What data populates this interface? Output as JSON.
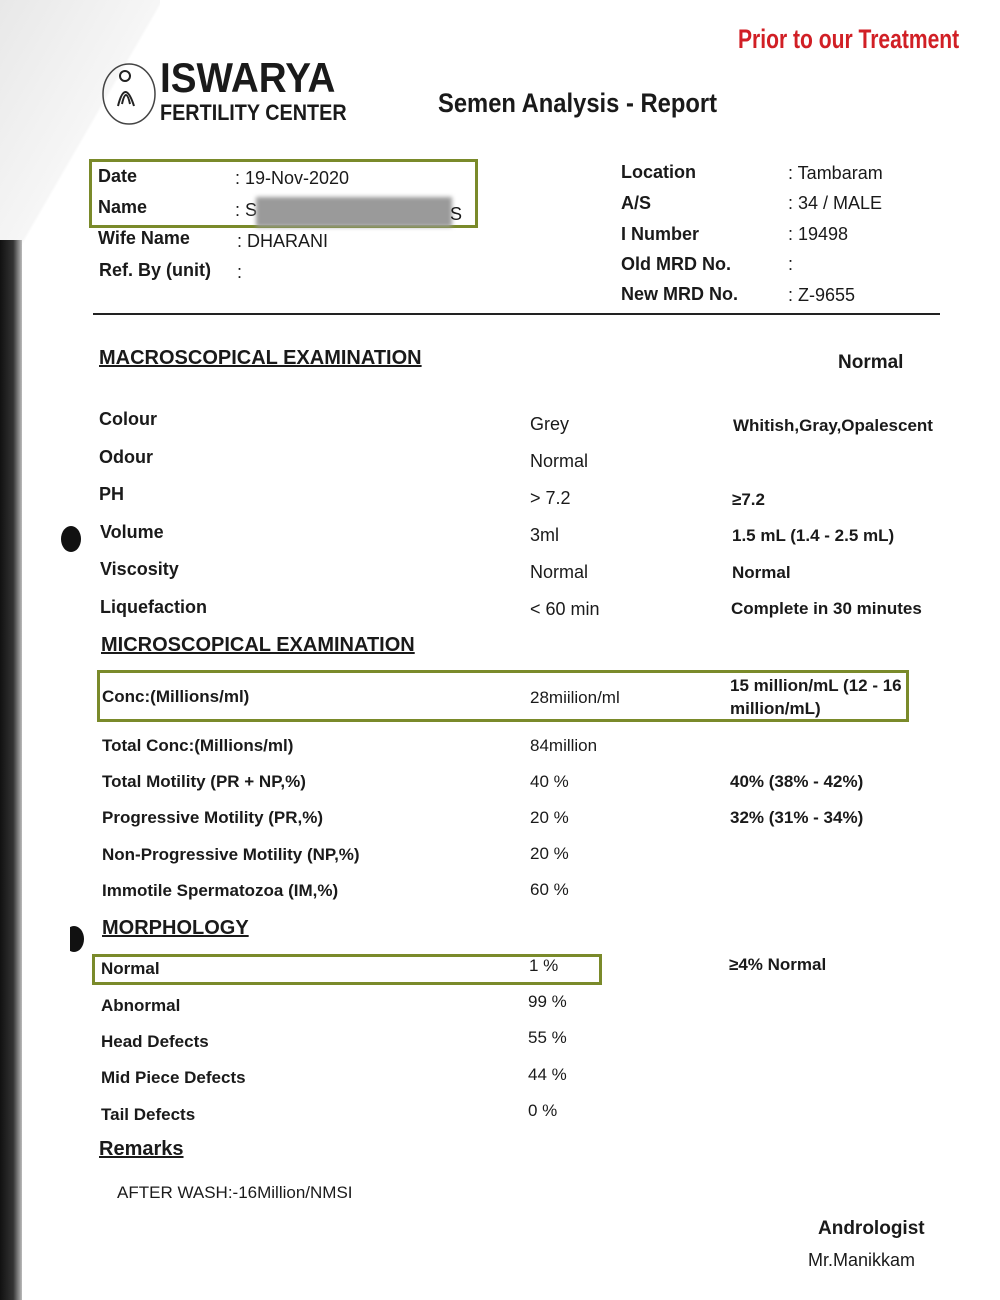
{
  "stamp": "Prior to our Treatment",
  "logo": {
    "name": "ISWARYA",
    "subtitle": "FERTILITY CENTER"
  },
  "report_title": "Semen Analysis - Report",
  "patient_left": [
    {
      "label": "Date",
      "value": ": 19-Nov-2020"
    },
    {
      "label": "Name",
      "value_start": ": S",
      "value_end": "S"
    },
    {
      "label": "Wife Name",
      "value": ": DHARANI"
    },
    {
      "label": "Ref. By (unit)",
      "value": ":"
    }
  ],
  "patient_right": [
    {
      "label": "Location",
      "value": ": Tambaram"
    },
    {
      "label": "A/S",
      "value": ": 34 / MALE"
    },
    {
      "label": "I Number",
      "value": ": 19498"
    },
    {
      "label": "Old MRD No.",
      "value": ":"
    },
    {
      "label": "New MRD No.",
      "value": ": Z-9655"
    }
  ],
  "macro": {
    "heading": "MACROSCOPICAL EXAMINATION",
    "normal_heading": "Normal",
    "rows": [
      {
        "label": "Colour",
        "value": "Grey",
        "normal": "Whitish,Gray,Opalescent"
      },
      {
        "label": "Odour",
        "value": "Normal",
        "normal": ""
      },
      {
        "label": "PH",
        "value": "> 7.2",
        "normal": "≥7.2"
      },
      {
        "label": "Volume",
        "value": "3ml",
        "normal": "1.5 mL (1.4 - 2.5 mL)"
      },
      {
        "label": "Viscosity",
        "value": "Normal",
        "normal": "Normal"
      },
      {
        "label": "Liquefaction",
        "value": "< 60 min",
        "normal": "Complete in 30 minutes"
      }
    ]
  },
  "micro": {
    "heading": "MICROSCOPICAL EXAMINATION",
    "rows": [
      {
        "label": "Conc:(Millions/ml)",
        "value": "28miilion/ml",
        "normal_line1": "15 million/mL (12 - 16",
        "normal_line2": "million/mL)"
      },
      {
        "label": "Total Conc:(Millions/ml)",
        "value": "84million",
        "normal": ""
      },
      {
        "label": "Total Motility (PR + NP,%)",
        "value": "40 %",
        "normal": "40% (38% - 42%)"
      },
      {
        "label": "Progressive Motility (PR,%)",
        "value": "20 %",
        "normal": "32% (31% - 34%)"
      },
      {
        "label": "Non-Progressive Motility (NP,%)",
        "value": "20 %",
        "normal": ""
      },
      {
        "label": "Immotile Spermatozoa (IM,%)",
        "value": "60 %",
        "normal": ""
      }
    ]
  },
  "morph": {
    "heading": "MORPHOLOGY",
    "rows": [
      {
        "label": "Normal",
        "value": "1 %",
        "normal": "≥4% Normal"
      },
      {
        "label": "Abnormal",
        "value": "99 %"
      },
      {
        "label": "Head Defects",
        "value": "55 %"
      },
      {
        "label": "Mid Piece Defects",
        "value": "44 %"
      },
      {
        "label": "Tail Defects",
        "value": "0 %"
      }
    ]
  },
  "remarks": {
    "heading": "Remarks",
    "text": "AFTER WASH:-16Million/NMSI"
  },
  "signature": {
    "title": "Andrologist",
    "name": "Mr.Manikkam"
  },
  "colors": {
    "stamp": "#d11f25",
    "highlight_box": "#7a8a2a"
  }
}
